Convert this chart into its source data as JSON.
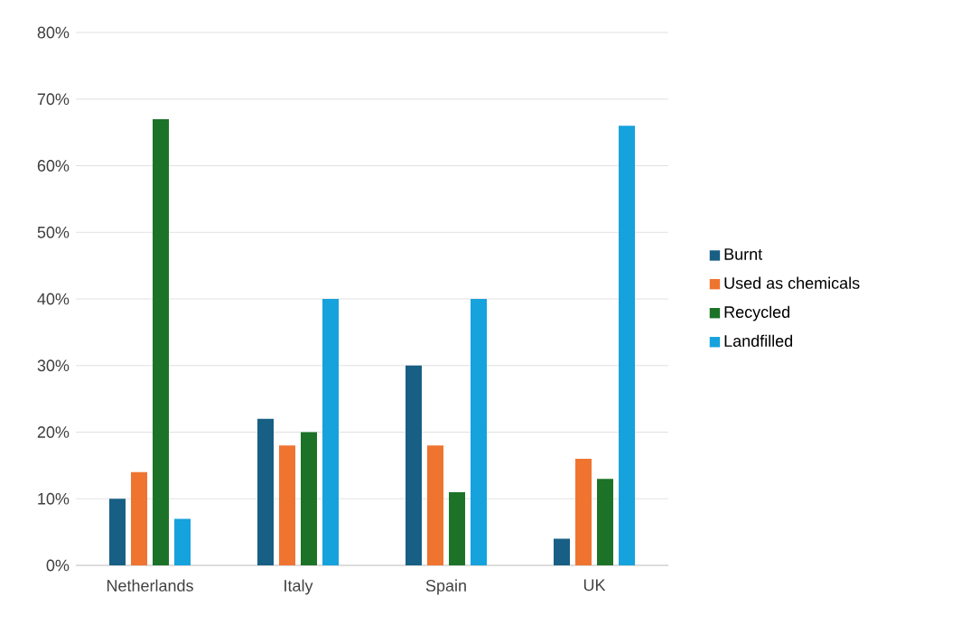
{
  "chart_data": {
    "type": "bar",
    "categories": [
      "Netherlands",
      "Italy",
      "Spain",
      "UK"
    ],
    "series": [
      {
        "name": "Burnt",
        "color": "#185f85",
        "values": [
          10,
          22,
          30,
          4
        ]
      },
      {
        "name": "Used as chemicals",
        "color": "#ef7430",
        "values": [
          14,
          18,
          18,
          16
        ]
      },
      {
        "name": "Recycled",
        "color": "#1c7327",
        "values": [
          67,
          20,
          11,
          13
        ]
      },
      {
        "name": "Landfilled",
        "color": "#16a2dc",
        "values": [
          7,
          40,
          40,
          66
        ]
      }
    ],
    "ylim": [
      0,
      80
    ],
    "yticks": [
      {
        "value": 0,
        "label": "0%"
      },
      {
        "value": 10,
        "label": "10%"
      },
      {
        "value": 20,
        "label": "20%"
      },
      {
        "value": 30,
        "label": "30%"
      },
      {
        "value": 40,
        "label": "40%"
      },
      {
        "value": 50,
        "label": "50%"
      },
      {
        "value": 60,
        "label": "60%"
      },
      {
        "value": 70,
        "label": "70%"
      },
      {
        "value": 80,
        "label": "80%"
      }
    ],
    "grid": "y",
    "legend": "right"
  }
}
